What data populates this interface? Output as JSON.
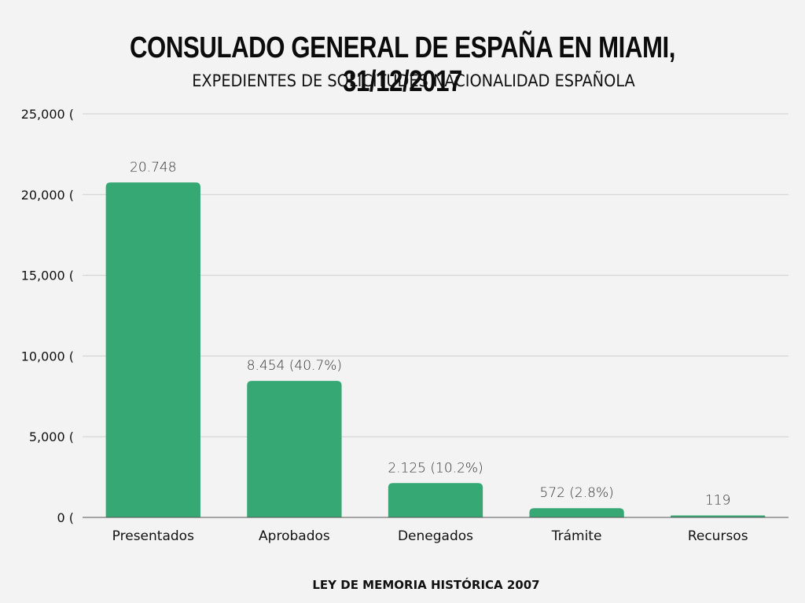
{
  "title": "CONSULADO GENERAL DE ESPAÑA EN MIAMI, 31/12/2017",
  "subtitle": "EXPEDIENTES DE SOLICITUDES NACIONALIDAD ESPAÑOLA",
  "footer": "LEY DE MEMORIA HISTÓRICA 2007",
  "colors": {
    "bar": "#36a874",
    "grid": "#cfcfcf",
    "axis": "#555555",
    "background": "#f3f3f3"
  },
  "chart_data": {
    "type": "bar",
    "title": "CONSULADO GENERAL DE ESPAÑA EN MIAMI, 31/12/2017",
    "subtitle": "EXPEDIENTES DE SOLICITUDES NACIONALIDAD ESPAÑOLA",
    "categories": [
      "Presentados",
      "Aprobados",
      "Denegados",
      "Trámite",
      "Recursos"
    ],
    "values": [
      20748,
      8454,
      2125,
      572,
      119
    ],
    "data_labels": [
      "20.748",
      "8.454 (40.7%)",
      "2.125 (10.2%)",
      "572 (2.8%)",
      "119"
    ],
    "xlabel": "",
    "ylabel": "",
    "ylim": [
      0,
      25000
    ],
    "yticks": [
      0,
      5000,
      10000,
      15000,
      20000,
      25000
    ],
    "ytick_labels": [
      "0 (",
      "5,000 (",
      "10,000 (",
      "15,000 (",
      "20,000 (",
      "25,000 ("
    ],
    "grid": true,
    "legend": "none"
  }
}
